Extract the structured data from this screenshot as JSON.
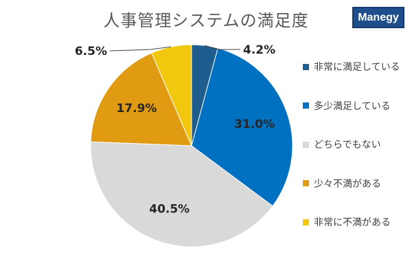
{
  "title": "人事管理システムの満足度",
  "logo": {
    "text": "Manegy"
  },
  "chart_data": {
    "type": "pie",
    "categories": [
      "非常に満足している",
      "多少満足している",
      "どちらでもない",
      "少々不満がある",
      "非常に不満がある"
    ],
    "values": [
      4.2,
      31.0,
      40.5,
      17.9,
      6.5
    ],
    "labels": [
      "4.2%",
      "31.0%",
      "40.5%",
      "17.9%",
      "6.5%"
    ],
    "colors": [
      "#1f5d8e",
      "#0070c0",
      "#d9d9d9",
      "#e09b12",
      "#f2c80f"
    ],
    "legend_position": "right"
  }
}
